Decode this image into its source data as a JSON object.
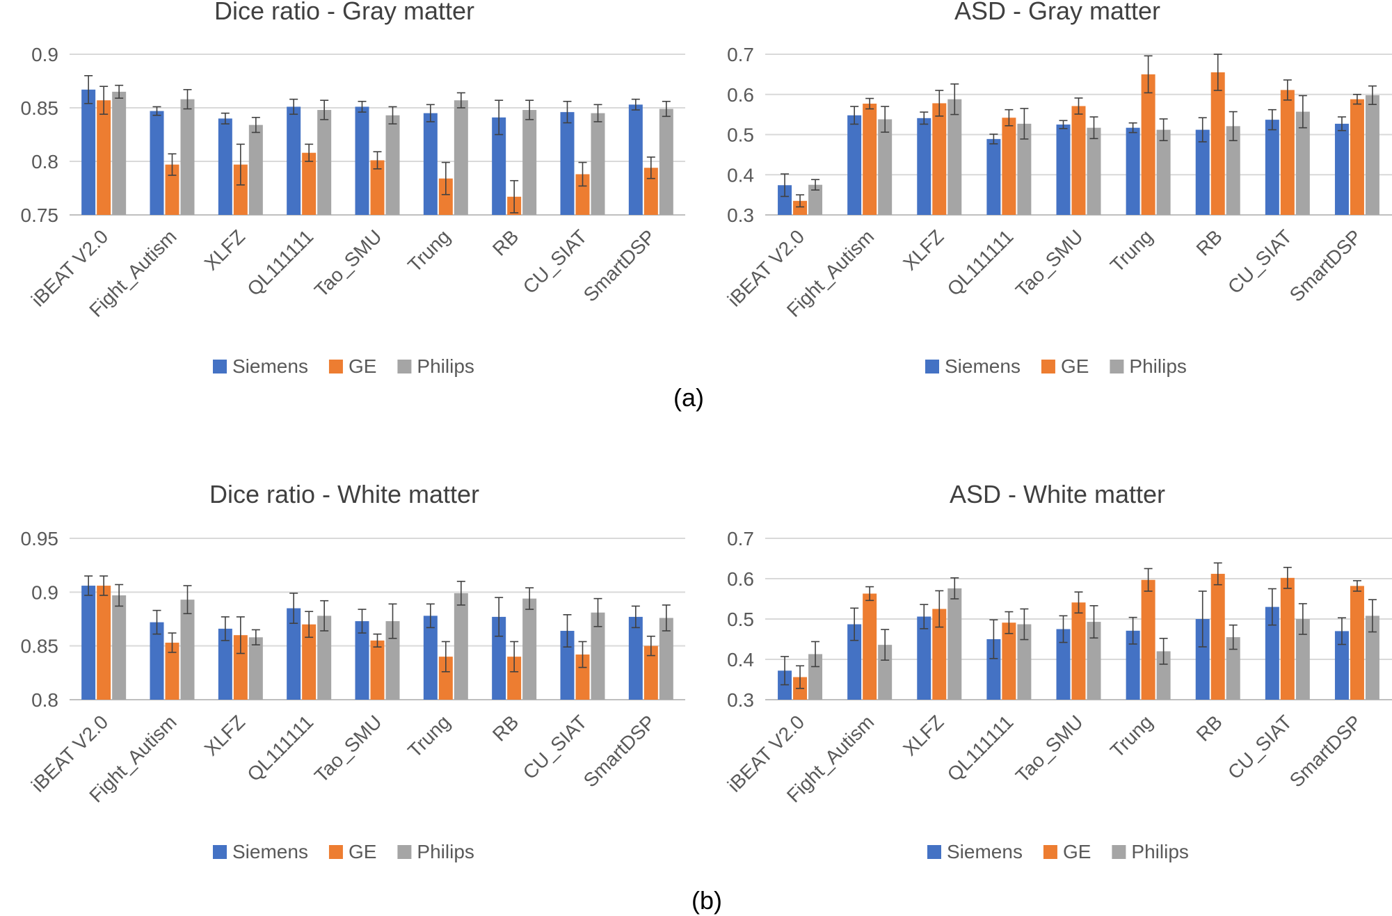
{
  "colors": {
    "siemens": "#4472C4",
    "ge": "#ED7D31",
    "philips": "#A5A5A5",
    "grid": "#D9D9D9",
    "axis": "#BFBFBF",
    "text": "#595959",
    "title": "#404040"
  },
  "panel_labels": [
    "(a)",
    "(b)"
  ],
  "chart_data": [
    {
      "type": "bar",
      "title": "Dice ratio - Gray matter",
      "xlabel": "",
      "ylabel": "",
      "ylim": [
        0.75,
        0.9
      ],
      "yticks": [
        "0.75",
        "0.8",
        "0.85",
        "0.9"
      ],
      "grid": true,
      "legend_position": "bottom",
      "categories": [
        "iBEAT V2.0",
        "Fight_Autism",
        "XLFZ",
        "QL111111",
        "Tao_SMU",
        "Trung",
        "RB",
        "CU_SIAT",
        "SmartDSP"
      ],
      "series": [
        {
          "name": "Siemens",
          "color": "#4472C4",
          "values": [
            0.867,
            0.847,
            0.84,
            0.851,
            0.851,
            0.845,
            0.841,
            0.846,
            0.853
          ],
          "errors": [
            0.013,
            0.004,
            0.005,
            0.007,
            0.005,
            0.008,
            0.016,
            0.01,
            0.005
          ]
        },
        {
          "name": "GE",
          "color": "#ED7D31",
          "values": [
            0.857,
            0.797,
            0.797,
            0.808,
            0.801,
            0.784,
            0.767,
            0.788,
            0.794
          ],
          "errors": [
            0.013,
            0.01,
            0.019,
            0.008,
            0.008,
            0.015,
            0.015,
            0.011,
            0.01
          ]
        },
        {
          "name": "Philips",
          "color": "#A5A5A5",
          "values": [
            0.865,
            0.858,
            0.834,
            0.848,
            0.843,
            0.857,
            0.848,
            0.845,
            0.849
          ],
          "errors": [
            0.006,
            0.009,
            0.007,
            0.009,
            0.008,
            0.007,
            0.009,
            0.008,
            0.007
          ]
        }
      ]
    },
    {
      "type": "bar",
      "title": "ASD - Gray matter",
      "xlabel": "",
      "ylabel": "",
      "ylim": [
        0.3,
        0.7
      ],
      "yticks": [
        "0.3",
        "0.4",
        "0.5",
        "0.6",
        "0.7"
      ],
      "grid": true,
      "legend_position": "bottom",
      "categories": [
        "iBEAT V2.0",
        "Fight_Autism",
        "XLFZ",
        "QL111111",
        "Tao_SMU",
        "Trung",
        "RB",
        "CU_SIAT",
        "SmartDSP"
      ],
      "series": [
        {
          "name": "Siemens",
          "color": "#4472C4",
          "values": [
            0.374,
            0.548,
            0.541,
            0.489,
            0.525,
            0.517,
            0.512,
            0.537,
            0.527
          ],
          "errors": [
            0.028,
            0.022,
            0.015,
            0.012,
            0.01,
            0.012,
            0.03,
            0.025,
            0.017
          ]
        },
        {
          "name": "GE",
          "color": "#ED7D31",
          "values": [
            0.335,
            0.577,
            0.578,
            0.542,
            0.571,
            0.65,
            0.655,
            0.611,
            0.588
          ],
          "errors": [
            0.015,
            0.013,
            0.032,
            0.02,
            0.02,
            0.046,
            0.045,
            0.025,
            0.012
          ]
        },
        {
          "name": "Philips",
          "color": "#A5A5A5",
          "values": [
            0.375,
            0.538,
            0.588,
            0.527,
            0.517,
            0.512,
            0.521,
            0.557,
            0.598
          ],
          "errors": [
            0.013,
            0.032,
            0.038,
            0.038,
            0.027,
            0.027,
            0.036,
            0.04,
            0.023
          ]
        }
      ]
    },
    {
      "type": "bar",
      "title": "Dice ratio - White matter",
      "xlabel": "",
      "ylabel": "",
      "ylim": [
        0.8,
        0.95
      ],
      "yticks": [
        "0.8",
        "0.85",
        "0.9",
        "0.95"
      ],
      "grid": true,
      "legend_position": "bottom",
      "categories": [
        "iBEAT V2.0",
        "Fight_Autism",
        "XLFZ",
        "QL111111",
        "Tao_SMU",
        "Trung",
        "RB",
        "CU_SIAT",
        "SmartDSP"
      ],
      "series": [
        {
          "name": "Siemens",
          "color": "#4472C4",
          "values": [
            0.906,
            0.872,
            0.866,
            0.885,
            0.873,
            0.878,
            0.877,
            0.864,
            0.877
          ],
          "errors": [
            0.009,
            0.011,
            0.011,
            0.014,
            0.011,
            0.011,
            0.018,
            0.015,
            0.01
          ]
        },
        {
          "name": "GE",
          "color": "#ED7D31",
          "values": [
            0.906,
            0.853,
            0.86,
            0.87,
            0.855,
            0.84,
            0.84,
            0.842,
            0.85
          ],
          "errors": [
            0.009,
            0.009,
            0.017,
            0.012,
            0.006,
            0.014,
            0.014,
            0.012,
            0.009
          ]
        },
        {
          "name": "Philips",
          "color": "#A5A5A5",
          "values": [
            0.897,
            0.893,
            0.858,
            0.878,
            0.873,
            0.899,
            0.894,
            0.881,
            0.876
          ],
          "errors": [
            0.01,
            0.013,
            0.007,
            0.014,
            0.016,
            0.011,
            0.01,
            0.013,
            0.012
          ]
        }
      ]
    },
    {
      "type": "bar",
      "title": "ASD - White matter",
      "xlabel": "",
      "ylabel": "",
      "ylim": [
        0.3,
        0.7
      ],
      "yticks": [
        "0.3",
        "0.4",
        "0.5",
        "0.6",
        "0.7"
      ],
      "grid": true,
      "legend_position": "bottom",
      "categories": [
        "iBEAT V2.0",
        "Fight_Autism",
        "XLFZ",
        "QL111111",
        "Tao_SMU",
        "Trung",
        "RB",
        "CU_SIAT",
        "SmartDSP"
      ],
      "series": [
        {
          "name": "Siemens",
          "color": "#4472C4",
          "values": [
            0.372,
            0.487,
            0.506,
            0.45,
            0.475,
            0.471,
            0.5,
            0.53,
            0.47
          ],
          "errors": [
            0.035,
            0.04,
            0.03,
            0.048,
            0.033,
            0.033,
            0.069,
            0.045,
            0.033
          ]
        },
        {
          "name": "GE",
          "color": "#ED7D31",
          "values": [
            0.356,
            0.563,
            0.525,
            0.491,
            0.541,
            0.597,
            0.612,
            0.602,
            0.582
          ],
          "errors": [
            0.028,
            0.017,
            0.045,
            0.027,
            0.026,
            0.028,
            0.027,
            0.026,
            0.013
          ]
        },
        {
          "name": "Philips",
          "color": "#A5A5A5",
          "values": [
            0.413,
            0.436,
            0.576,
            0.487,
            0.493,
            0.42,
            0.455,
            0.5,
            0.508
          ],
          "errors": [
            0.031,
            0.038,
            0.026,
            0.038,
            0.04,
            0.032,
            0.03,
            0.038,
            0.04
          ]
        }
      ]
    }
  ]
}
